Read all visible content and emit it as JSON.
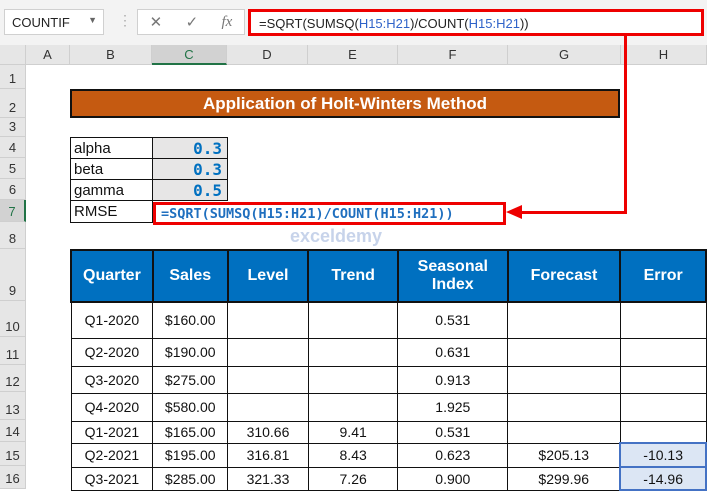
{
  "toolbar": {
    "name_box": "COUNTIF",
    "cancel_icon": "✕",
    "enter_icon": "✓",
    "fx_label": "fx",
    "formula_parts": [
      "=SQRT(SUMSQ(",
      "H15:H21",
      ")/COUNT(",
      "H15:H21",
      "))"
    ]
  },
  "columns": [
    "A",
    "B",
    "C",
    "D",
    "E",
    "F",
    "G",
    "H"
  ],
  "rows": [
    "1",
    "2",
    "3",
    "4",
    "5",
    "6",
    "7",
    "8",
    "9",
    "10",
    "11",
    "12",
    "13",
    "14",
    "15",
    "16"
  ],
  "title": "Application of Holt-Winters Method",
  "params": [
    {
      "label": "alpha",
      "value": "0.3"
    },
    {
      "label": "beta",
      "value": "0.3"
    },
    {
      "label": "gamma",
      "value": "0.5"
    },
    {
      "label": "RMSE"
    }
  ],
  "rmse_formula_parts": [
    "=SQRT(SUMSQ(",
    "H15:H21",
    ")/COUNT(",
    "H15:H21",
    "))"
  ],
  "table": {
    "headers": [
      "Quarter",
      "Sales",
      "Level",
      "Trend",
      "Seasonal Index",
      "Forecast",
      "Error"
    ],
    "rows": [
      [
        "Q1-2020",
        "$160.00",
        "",
        "",
        "0.531",
        "",
        ""
      ],
      [
        "Q2-2020",
        "$190.00",
        "",
        "",
        "0.631",
        "",
        ""
      ],
      [
        "Q3-2020",
        "$275.00",
        "",
        "",
        "0.913",
        "",
        ""
      ],
      [
        "Q4-2020",
        "$580.00",
        "",
        "",
        "1.925",
        "",
        ""
      ],
      [
        "Q1-2021",
        "$165.00",
        "310.66",
        "9.41",
        "0.531",
        "",
        ""
      ],
      [
        "Q2-2021",
        "$195.00",
        "316.81",
        "8.43",
        "0.623",
        "$205.13",
        "-10.13"
      ],
      [
        "Q3-2021",
        "$285.00",
        "321.33",
        "7.26",
        "0.900",
        "$299.96",
        "-14.96"
      ]
    ]
  },
  "watermark": "exceldemy",
  "colors": {
    "header_blue": "#0070c0",
    "title_orange": "#c55a11",
    "highlight_red": "#ee0000"
  }
}
